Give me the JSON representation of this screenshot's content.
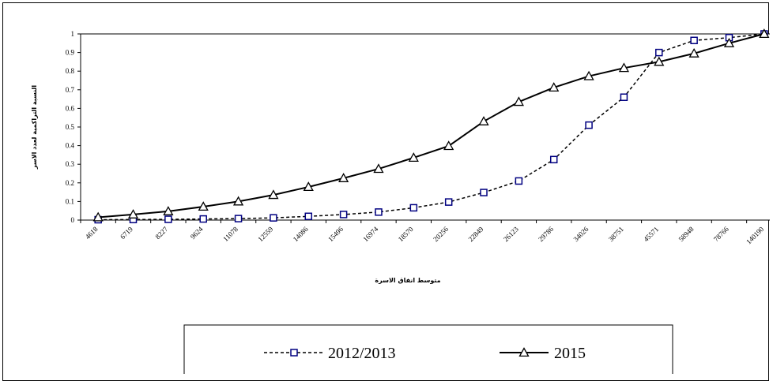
{
  "chart_data": {
    "type": "line",
    "categories": [
      "4618",
      "6719",
      "8227",
      "9624",
      "11078",
      "12559",
      "14086",
      "15496",
      "16974",
      "18570",
      "20256",
      "22849",
      "26123",
      "29786",
      "34026",
      "38751",
      "45571",
      "58948",
      "78766",
      "140190"
    ],
    "series": [
      {
        "name": "2012/2013",
        "values": [
          0.002,
          0.003,
          0.004,
          0.006,
          0.008,
          0.012,
          0.02,
          0.03,
          0.043,
          0.066,
          0.097,
          0.148,
          0.21,
          0.325,
          0.51,
          0.66,
          0.9,
          0.965,
          0.98,
          1.0
        ],
        "color": "#000080",
        "line_style": "dashed",
        "marker": "square"
      },
      {
        "name": "2015",
        "values": [
          0.015,
          0.03,
          0.047,
          0.072,
          0.1,
          0.135,
          0.178,
          0.225,
          0.275,
          0.335,
          0.398,
          0.53,
          0.635,
          0.712,
          0.773,
          0.817,
          0.85,
          0.895,
          0.95,
          1.0
        ],
        "color": "#000000",
        "line_style": "solid",
        "marker": "triangle"
      }
    ],
    "xlabel": "متوسط انفاق الاسرة",
    "ylabel": "النسبة التراكمية لعدد الاسر",
    "ylim": [
      0,
      1
    ],
    "yticks": [
      "0",
      "0.1",
      "0.2",
      "0.3",
      "0.4",
      "0.5",
      "0.6",
      "0.7",
      "0.8",
      "0.9",
      "1"
    ],
    "grid": false,
    "legend_position": "bottom"
  }
}
